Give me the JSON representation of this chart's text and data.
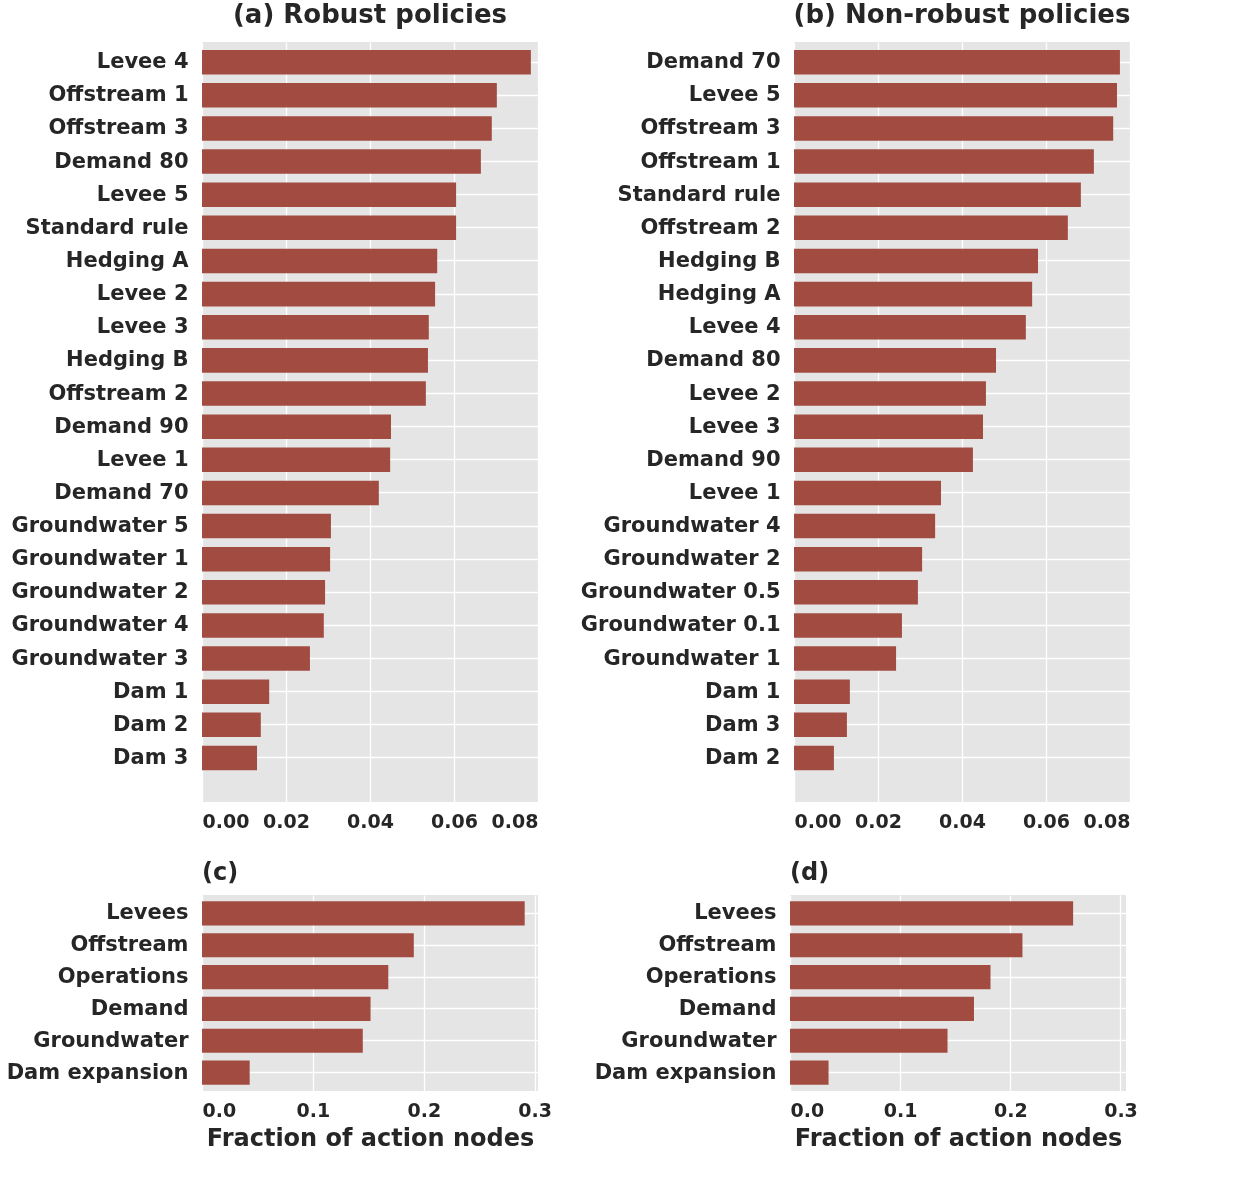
{
  "chart_data": [
    {
      "type": "bar",
      "orientation": "horizontal",
      "title": "(a) Robust policies",
      "categories": [
        "Levee 4",
        "Offstream 1",
        "Offstream 3",
        "Demand 80",
        "Levee 5",
        "Standard rule",
        "Hedging A",
        "Levee 2",
        "Levee 3",
        "Hedging B",
        "Offstream 2",
        "Demand 90",
        "Levee 1",
        "Demand 70",
        "Groundwater 5",
        "Groundwater 1",
        "Groundwater 2",
        "Groundwater 4",
        "Groundwater 3",
        "Dam 1",
        "Dam 2",
        "Dam 3"
      ],
      "values": [
        0.0783,
        0.0702,
        0.069,
        0.0664,
        0.0605,
        0.0605,
        0.056,
        0.0555,
        0.054,
        0.0538,
        0.0533,
        0.045,
        0.0448,
        0.0421,
        0.0307,
        0.0305,
        0.0293,
        0.029,
        0.0257,
        0.016,
        0.014,
        0.0131
      ],
      "color": "#9e4238",
      "xlim": [
        0,
        0.08
      ],
      "xticks": [
        {
          "value": 0,
          "label": "0.00"
        },
        {
          "value": 0.02,
          "label": "0.02"
        },
        {
          "value": 0.04,
          "label": "0.04"
        },
        {
          "value": 0.06,
          "label": "0.06"
        },
        {
          "value": 0.08,
          "label": "0.08"
        }
      ],
      "grid": true
    },
    {
      "type": "bar",
      "orientation": "horizontal",
      "title": "(b) Non-robust policies",
      "categories": [
        "Demand 70",
        "Levee 5",
        "Offstream 3",
        "Offstream 1",
        "Standard rule",
        "Offstream 2",
        "Hedging B",
        "Hedging A",
        "Levee 4",
        "Demand 80",
        "Levee 2",
        "Levee 3",
        "Demand 90",
        "Levee 1",
        "Groundwater 4",
        "Groundwater 2",
        "Groundwater 0.5",
        "Groundwater 0.1",
        "Groundwater 1",
        "Dam 1",
        "Dam 3",
        "Dam 2"
      ],
      "values": [
        0.0776,
        0.0769,
        0.076,
        0.0714,
        0.0683,
        0.0652,
        0.0581,
        0.0567,
        0.0552,
        0.0481,
        0.0457,
        0.045,
        0.0426,
        0.035,
        0.0336,
        0.0305,
        0.0295,
        0.0257,
        0.0243,
        0.0133,
        0.0126,
        0.0095
      ],
      "color": "#9e4238",
      "xlim": [
        0,
        0.08
      ],
      "xticks": [
        {
          "value": 0,
          "label": "0.00"
        },
        {
          "value": 0.02,
          "label": "0.02"
        },
        {
          "value": 0.04,
          "label": "0.04"
        },
        {
          "value": 0.06,
          "label": "0.06"
        },
        {
          "value": 0.08,
          "label": "0.08"
        }
      ],
      "grid": true
    },
    {
      "type": "bar",
      "orientation": "horizontal",
      "title": "(c)",
      "xlabel": "Fraction of action nodes",
      "categories": [
        "Levees",
        "Offstream",
        "Operations",
        "Demand",
        "Groundwater",
        "Dam expansion"
      ],
      "values": [
        0.291,
        0.191,
        0.168,
        0.152,
        0.145,
        0.043
      ],
      "color": "#9e4238",
      "xlim": [
        0,
        0.303
      ],
      "xticks": [
        {
          "value": 0,
          "label": "0.0"
        },
        {
          "value": 0.1,
          "label": "0.1"
        },
        {
          "value": 0.2,
          "label": "0.2"
        },
        {
          "value": 0.3,
          "label": "0.3"
        }
      ],
      "grid": true
    },
    {
      "type": "bar",
      "orientation": "horizontal",
      "title": "(d)",
      "xlabel": "Fraction of action nodes",
      "categories": [
        "Levees",
        "Offstream",
        "Operations",
        "Demand",
        "Groundwater",
        "Dam expansion"
      ],
      "values": [
        0.257,
        0.211,
        0.182,
        0.167,
        0.143,
        0.035
      ],
      "color": "#9e4238",
      "xlim": [
        0,
        0.305
      ],
      "xticks": [
        {
          "value": 0,
          "label": "0.0"
        },
        {
          "value": 0.1,
          "label": "0.1"
        },
        {
          "value": 0.2,
          "label": "0.2"
        },
        {
          "value": 0.3,
          "label": "0.3"
        }
      ],
      "grid": true
    }
  ]
}
